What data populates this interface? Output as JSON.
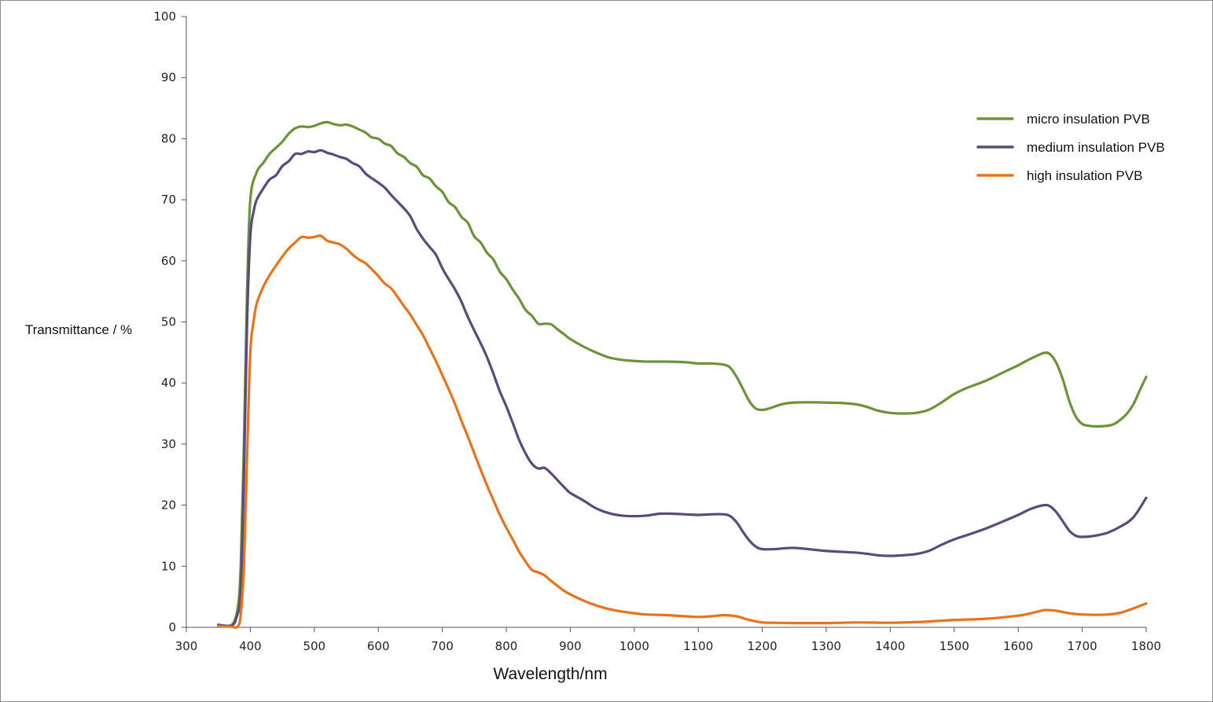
{
  "chart_data": {
    "type": "line",
    "title": "",
    "xlabel": "Wavelength/nm",
    "ylabel": "Transmittance / %",
    "xlim": [
      300,
      1800
    ],
    "ylim": [
      0,
      100
    ],
    "xticks": [
      300,
      400,
      500,
      600,
      700,
      800,
      900,
      1000,
      1100,
      1200,
      1300,
      1400,
      1500,
      1600,
      1700,
      1800
    ],
    "yticks": [
      0,
      10,
      20,
      30,
      40,
      50,
      60,
      70,
      80,
      90,
      100
    ],
    "grid": false,
    "legend_position": "top-right",
    "series": [
      {
        "name": "micro insulation PVB",
        "color": "#6b943a",
        "points": [
          [
            350,
            0.4
          ],
          [
            370,
            0.3
          ],
          [
            380,
            3
          ],
          [
            385,
            10
          ],
          [
            390,
            30
          ],
          [
            395,
            55
          ],
          [
            400,
            70
          ],
          [
            410,
            74.5
          ],
          [
            420,
            76
          ],
          [
            430,
            77.5
          ],
          [
            440,
            78.5
          ],
          [
            450,
            79.5
          ],
          [
            460,
            80.8
          ],
          [
            470,
            81.7
          ],
          [
            480,
            82
          ],
          [
            490,
            81.9
          ],
          [
            500,
            82.1
          ],
          [
            510,
            82.5
          ],
          [
            520,
            82.7
          ],
          [
            530,
            82.4
          ],
          [
            540,
            82.2
          ],
          [
            550,
            82.3
          ],
          [
            560,
            82
          ],
          [
            570,
            81.5
          ],
          [
            580,
            81
          ],
          [
            590,
            80.2
          ],
          [
            600,
            80
          ],
          [
            610,
            79.2
          ],
          [
            620,
            78.8
          ],
          [
            630,
            77.6
          ],
          [
            640,
            77
          ],
          [
            650,
            76
          ],
          [
            660,
            75.4
          ],
          [
            670,
            74
          ],
          [
            680,
            73.5
          ],
          [
            690,
            72.2
          ],
          [
            700,
            71.3
          ],
          [
            710,
            69.6
          ],
          [
            720,
            68.8
          ],
          [
            730,
            67.2
          ],
          [
            740,
            66.2
          ],
          [
            750,
            64
          ],
          [
            760,
            63
          ],
          [
            770,
            61.3
          ],
          [
            780,
            60.2
          ],
          [
            790,
            58.2
          ],
          [
            800,
            57
          ],
          [
            810,
            55.3
          ],
          [
            820,
            53.8
          ],
          [
            830,
            52
          ],
          [
            840,
            51
          ],
          [
            850,
            49.7
          ],
          [
            860,
            49.7
          ],
          [
            870,
            49.6
          ],
          [
            880,
            48.8
          ],
          [
            890,
            48
          ],
          [
            900,
            47.2
          ],
          [
            920,
            46
          ],
          [
            940,
            45
          ],
          [
            960,
            44.2
          ],
          [
            980,
            43.8
          ],
          [
            1000,
            43.6
          ],
          [
            1020,
            43.5
          ],
          [
            1050,
            43.5
          ],
          [
            1080,
            43.4
          ],
          [
            1100,
            43.2
          ],
          [
            1120,
            43.2
          ],
          [
            1140,
            43
          ],
          [
            1150,
            42.5
          ],
          [
            1160,
            41
          ],
          [
            1170,
            39
          ],
          [
            1180,
            37
          ],
          [
            1190,
            35.8
          ],
          [
            1200,
            35.6
          ],
          [
            1210,
            35.8
          ],
          [
            1230,
            36.5
          ],
          [
            1250,
            36.8
          ],
          [
            1300,
            36.8
          ],
          [
            1340,
            36.6
          ],
          [
            1360,
            36.2
          ],
          [
            1380,
            35.5
          ],
          [
            1400,
            35.1
          ],
          [
            1420,
            35
          ],
          [
            1440,
            35.1
          ],
          [
            1460,
            35.6
          ],
          [
            1480,
            36.8
          ],
          [
            1500,
            38.2
          ],
          [
            1520,
            39.2
          ],
          [
            1550,
            40.4
          ],
          [
            1580,
            41.9
          ],
          [
            1600,
            42.9
          ],
          [
            1620,
            44
          ],
          [
            1640,
            44.9
          ],
          [
            1650,
            44.7
          ],
          [
            1660,
            43.2
          ],
          [
            1670,
            40.5
          ],
          [
            1680,
            37
          ],
          [
            1690,
            34.5
          ],
          [
            1700,
            33.3
          ],
          [
            1710,
            33
          ],
          [
            1720,
            32.9
          ],
          [
            1740,
            33
          ],
          [
            1750,
            33.3
          ],
          [
            1760,
            34
          ],
          [
            1770,
            35
          ],
          [
            1780,
            36.5
          ],
          [
            1790,
            38.8
          ],
          [
            1800,
            41
          ]
        ]
      },
      {
        "name": "medium insulation PVB",
        "color": "#5c4a7e",
        "points": [
          [
            350,
            0.4
          ],
          [
            370,
            0.3
          ],
          [
            378,
            1.5
          ],
          [
            385,
            6
          ],
          [
            390,
            25
          ],
          [
            395,
            50
          ],
          [
            400,
            64
          ],
          [
            405,
            68
          ],
          [
            410,
            70
          ],
          [
            420,
            71.8
          ],
          [
            430,
            73.3
          ],
          [
            440,
            74
          ],
          [
            450,
            75.5
          ],
          [
            460,
            76.3
          ],
          [
            470,
            77.5
          ],
          [
            480,
            77.5
          ],
          [
            490,
            77.9
          ],
          [
            500,
            77.8
          ],
          [
            510,
            78.1
          ],
          [
            520,
            77.7
          ],
          [
            530,
            77.4
          ],
          [
            540,
            77
          ],
          [
            550,
            76.7
          ],
          [
            560,
            76
          ],
          [
            570,
            75.5
          ],
          [
            580,
            74.3
          ],
          [
            590,
            73.5
          ],
          [
            600,
            72.8
          ],
          [
            610,
            72
          ],
          [
            620,
            70.8
          ],
          [
            630,
            69.7
          ],
          [
            640,
            68.6
          ],
          [
            650,
            67.3
          ],
          [
            660,
            65.2
          ],
          [
            670,
            63.6
          ],
          [
            680,
            62.3
          ],
          [
            690,
            61
          ],
          [
            700,
            58.8
          ],
          [
            710,
            57
          ],
          [
            720,
            55.3
          ],
          [
            730,
            53.3
          ],
          [
            740,
            50.8
          ],
          [
            750,
            48.6
          ],
          [
            760,
            46.5
          ],
          [
            770,
            44.2
          ],
          [
            780,
            41.5
          ],
          [
            790,
            38.6
          ],
          [
            800,
            36.2
          ],
          [
            810,
            33.5
          ],
          [
            820,
            30.7
          ],
          [
            830,
            28.5
          ],
          [
            840,
            26.8
          ],
          [
            850,
            26
          ],
          [
            860,
            26.1
          ],
          [
            870,
            25.2
          ],
          [
            880,
            24.1
          ],
          [
            890,
            23
          ],
          [
            900,
            22
          ],
          [
            920,
            20.8
          ],
          [
            940,
            19.5
          ],
          [
            960,
            18.7
          ],
          [
            980,
            18.3
          ],
          [
            1000,
            18.2
          ],
          [
            1020,
            18.3
          ],
          [
            1040,
            18.6
          ],
          [
            1060,
            18.6
          ],
          [
            1080,
            18.5
          ],
          [
            1100,
            18.4
          ],
          [
            1120,
            18.5
          ],
          [
            1140,
            18.5
          ],
          [
            1150,
            18.2
          ],
          [
            1160,
            17.2
          ],
          [
            1170,
            15.6
          ],
          [
            1180,
            14.2
          ],
          [
            1190,
            13.2
          ],
          [
            1200,
            12.8
          ],
          [
            1220,
            12.8
          ],
          [
            1250,
            13
          ],
          [
            1300,
            12.5
          ],
          [
            1350,
            12.2
          ],
          [
            1380,
            11.8
          ],
          [
            1400,
            11.7
          ],
          [
            1420,
            11.8
          ],
          [
            1440,
            12
          ],
          [
            1460,
            12.5
          ],
          [
            1480,
            13.5
          ],
          [
            1500,
            14.4
          ],
          [
            1520,
            15.1
          ],
          [
            1550,
            16.2
          ],
          [
            1580,
            17.5
          ],
          [
            1600,
            18.4
          ],
          [
            1620,
            19.4
          ],
          [
            1640,
            20
          ],
          [
            1650,
            19.8
          ],
          [
            1660,
            18.8
          ],
          [
            1670,
            17.3
          ],
          [
            1680,
            15.8
          ],
          [
            1690,
            15
          ],
          [
            1700,
            14.8
          ],
          [
            1720,
            15
          ],
          [
            1740,
            15.5
          ],
          [
            1760,
            16.5
          ],
          [
            1780,
            18
          ],
          [
            1800,
            21.2
          ]
        ]
      },
      {
        "name": "high insulation PVB",
        "color": "#e8731b",
        "points": [
          [
            350,
            0.2
          ],
          [
            370,
            0.1
          ],
          [
            380,
            0.1
          ],
          [
            385,
            2
          ],
          [
            390,
            10
          ],
          [
            395,
            28
          ],
          [
            400,
            45
          ],
          [
            405,
            50
          ],
          [
            410,
            53
          ],
          [
            420,
            55.7
          ],
          [
            430,
            57.6
          ],
          [
            440,
            59.2
          ],
          [
            450,
            60.7
          ],
          [
            460,
            62
          ],
          [
            470,
            63
          ],
          [
            480,
            63.9
          ],
          [
            490,
            63.8
          ],
          [
            500,
            63.9
          ],
          [
            510,
            64.1
          ],
          [
            520,
            63.3
          ],
          [
            530,
            63
          ],
          [
            540,
            62.7
          ],
          [
            550,
            62
          ],
          [
            560,
            61
          ],
          [
            570,
            60.2
          ],
          [
            580,
            59.6
          ],
          [
            590,
            58.6
          ],
          [
            600,
            57.5
          ],
          [
            610,
            56.3
          ],
          [
            620,
            55.5
          ],
          [
            630,
            54.1
          ],
          [
            640,
            52.6
          ],
          [
            650,
            51.2
          ],
          [
            660,
            49.5
          ],
          [
            670,
            47.8
          ],
          [
            680,
            45.7
          ],
          [
            690,
            43.6
          ],
          [
            700,
            41.3
          ],
          [
            710,
            39
          ],
          [
            720,
            36.5
          ],
          [
            730,
            33.8
          ],
          [
            740,
            31.2
          ],
          [
            750,
            28.5
          ],
          [
            760,
            25.8
          ],
          [
            770,
            23.2
          ],
          [
            780,
            20.8
          ],
          [
            790,
            18.4
          ],
          [
            800,
            16.3
          ],
          [
            810,
            14.4
          ],
          [
            820,
            12.4
          ],
          [
            830,
            10.8
          ],
          [
            840,
            9.4
          ],
          [
            850,
            9
          ],
          [
            860,
            8.5
          ],
          [
            870,
            7.6
          ],
          [
            880,
            6.8
          ],
          [
            890,
            6
          ],
          [
            900,
            5.4
          ],
          [
            920,
            4.4
          ],
          [
            940,
            3.6
          ],
          [
            960,
            3
          ],
          [
            980,
            2.6
          ],
          [
            1000,
            2.3
          ],
          [
            1020,
            2.1
          ],
          [
            1050,
            2
          ],
          [
            1080,
            1.8
          ],
          [
            1100,
            1.7
          ],
          [
            1120,
            1.8
          ],
          [
            1140,
            2
          ],
          [
            1160,
            1.8
          ],
          [
            1180,
            1.2
          ],
          [
            1200,
            0.8
          ],
          [
            1220,
            0.75
          ],
          [
            1250,
            0.7
          ],
          [
            1300,
            0.7
          ],
          [
            1350,
            0.8
          ],
          [
            1400,
            0.75
          ],
          [
            1450,
            0.9
          ],
          [
            1500,
            1.2
          ],
          [
            1550,
            1.4
          ],
          [
            1600,
            1.9
          ],
          [
            1620,
            2.3
          ],
          [
            1640,
            2.8
          ],
          [
            1650,
            2.8
          ],
          [
            1660,
            2.7
          ],
          [
            1680,
            2.3
          ],
          [
            1700,
            2.1
          ],
          [
            1720,
            2.05
          ],
          [
            1740,
            2.1
          ],
          [
            1760,
            2.4
          ],
          [
            1780,
            3.1
          ],
          [
            1800,
            3.9
          ]
        ]
      }
    ]
  }
}
